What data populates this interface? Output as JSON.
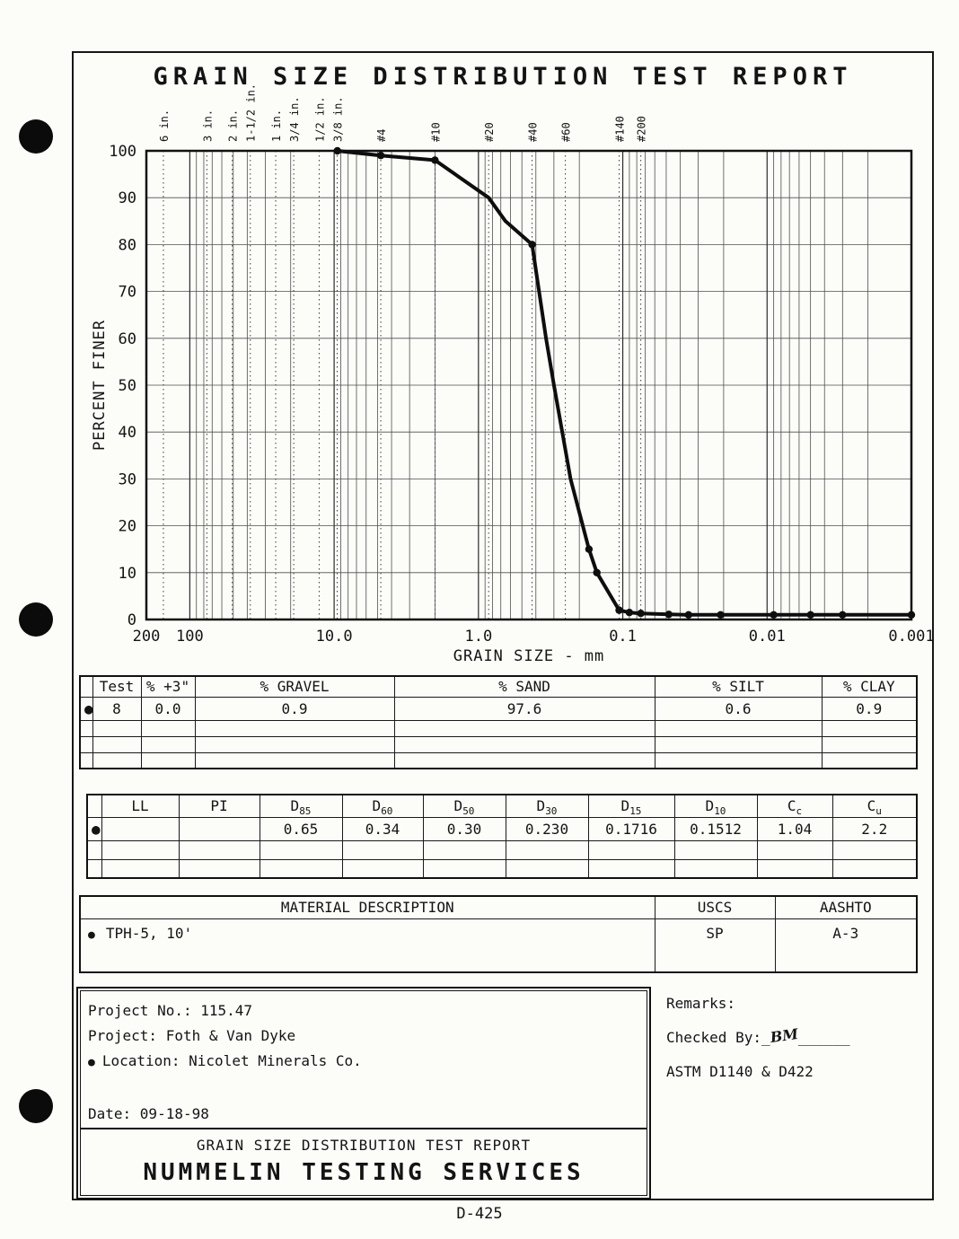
{
  "page": {
    "title": "GRAIN SIZE DISTRIBUTION TEST REPORT",
    "footer": "D-425"
  },
  "chart_data": {
    "type": "line",
    "title": "GRAIN SIZE DISTRIBUTION TEST REPORT",
    "xlabel": "GRAIN SIZE - mm",
    "ylabel": "PERCENT FINER",
    "xscale": "log",
    "xlim": [
      200,
      0.001
    ],
    "ylim": [
      0,
      100
    ],
    "grid": true,
    "y_ticks": [
      100,
      90,
      80,
      70,
      60,
      50,
      40,
      30,
      20,
      10,
      0
    ],
    "x_ticks": [
      {
        "label": "200",
        "mm": 200
      },
      {
        "label": "100",
        "mm": 100
      },
      {
        "label": "10.0",
        "mm": 10
      },
      {
        "label": "1.0",
        "mm": 1
      },
      {
        "label": "0.1",
        "mm": 0.1
      },
      {
        "label": "0.01",
        "mm": 0.01
      },
      {
        "label": "0.001",
        "mm": 0.001
      }
    ],
    "sieves": [
      {
        "label": "6 in.",
        "mm": 152.4
      },
      {
        "label": "3 in.",
        "mm": 76.2
      },
      {
        "label": "2 in.",
        "mm": 50.8
      },
      {
        "label": "1-1/2 in.",
        "mm": 38.1
      },
      {
        "label": "1 in.",
        "mm": 25.4
      },
      {
        "label": "3/4 in.",
        "mm": 19.05
      },
      {
        "label": "1/2 in.",
        "mm": 12.7
      },
      {
        "label": "3/8 in.",
        "mm": 9.525
      },
      {
        "label": "#4",
        "mm": 4.75
      },
      {
        "label": "#10",
        "mm": 2.0
      },
      {
        "label": "#20",
        "mm": 0.85
      },
      {
        "label": "#40",
        "mm": 0.425
      },
      {
        "label": "#60",
        "mm": 0.25
      },
      {
        "label": "#140",
        "mm": 0.106
      },
      {
        "label": "#200",
        "mm": 0.075
      }
    ],
    "series": [
      {
        "name": "Test 8",
        "points": [
          [
            9.5,
            100
          ],
          [
            4.75,
            99
          ],
          [
            2.0,
            98
          ],
          [
            0.85,
            90
          ],
          [
            0.65,
            85
          ],
          [
            0.425,
            80
          ],
          [
            0.34,
            60
          ],
          [
            0.3,
            50
          ],
          [
            0.23,
            30
          ],
          [
            0.1716,
            15
          ],
          [
            0.1512,
            10
          ],
          [
            0.106,
            2
          ],
          [
            0.09,
            1.5
          ],
          [
            0.075,
            1.3
          ],
          [
            0.048,
            1.1
          ],
          [
            0.035,
            1
          ],
          [
            0.021,
            1
          ],
          [
            0.013,
            1
          ],
          [
            0.009,
            1
          ],
          [
            0.005,
            1
          ],
          [
            0.003,
            1
          ],
          [
            0.001,
            1
          ]
        ],
        "markers": [
          [
            9.5,
            100
          ],
          [
            4.75,
            99
          ],
          [
            2.0,
            98
          ],
          [
            0.425,
            80
          ],
          [
            0.1716,
            15
          ],
          [
            0.1512,
            10
          ],
          [
            0.106,
            2
          ],
          [
            0.09,
            1.5
          ],
          [
            0.075,
            1.3
          ],
          [
            0.048,
            1.1
          ],
          [
            0.035,
            1
          ],
          [
            0.021,
            1
          ],
          [
            0.009,
            1
          ],
          [
            0.005,
            1
          ],
          [
            0.003,
            1
          ],
          [
            0.001,
            1
          ]
        ]
      }
    ]
  },
  "fractions": {
    "headers": {
      "test": "Test",
      "plus3": "% +3\"",
      "gravel": "% GRAVEL",
      "sand": "% SAND",
      "silt": "% SILT",
      "clay": "% CLAY"
    },
    "row": {
      "bullet": "●",
      "test": "8",
      "plus3": "0.0",
      "gravel": "0.9",
      "sand": "97.6",
      "silt": "0.6",
      "clay": "0.9"
    }
  },
  "params": {
    "headers": [
      {
        "base": "LL",
        "sub": ""
      },
      {
        "base": "PI",
        "sub": ""
      },
      {
        "base": "D",
        "sub": "85"
      },
      {
        "base": "D",
        "sub": "60"
      },
      {
        "base": "D",
        "sub": "50"
      },
      {
        "base": "D",
        "sub": "30"
      },
      {
        "base": "D",
        "sub": "15"
      },
      {
        "base": "D",
        "sub": "10"
      },
      {
        "base": "C",
        "sub": "c"
      },
      {
        "base": "C",
        "sub": "u"
      }
    ],
    "row": {
      "bullet": "●",
      "ll": "",
      "pi": "",
      "d85": "0.65",
      "d60": "0.34",
      "d50": "0.30",
      "d30": "0.230",
      "d15": "0.1716",
      "d10": "0.1512",
      "cc": "1.04",
      "cu": "2.2"
    }
  },
  "material": {
    "headers": {
      "description": "MATERIAL DESCRIPTION",
      "uscs": "USCS",
      "aashto": "AASHTO"
    },
    "row": {
      "bullet": "●",
      "description": "TPH-5, 10'",
      "uscs": "SP",
      "aashto": "A-3"
    }
  },
  "project": {
    "line1": "Project No.: 115.47",
    "line2": "Project: Foth & Van Dyke",
    "bullet": "●",
    "line3": "Location: Nicolet Minerals Co.",
    "date_line": "Date: 09-18-98",
    "report_line": "GRAIN SIZE DISTRIBUTION TEST REPORT",
    "company": "NUMMELIN TESTING SERVICES"
  },
  "remarks": {
    "title": "Remarks:",
    "checked_by": "Checked By:",
    "pre": "_",
    "signature": "BM",
    "post": "______",
    "astm": "ASTM D1140 & D422"
  }
}
